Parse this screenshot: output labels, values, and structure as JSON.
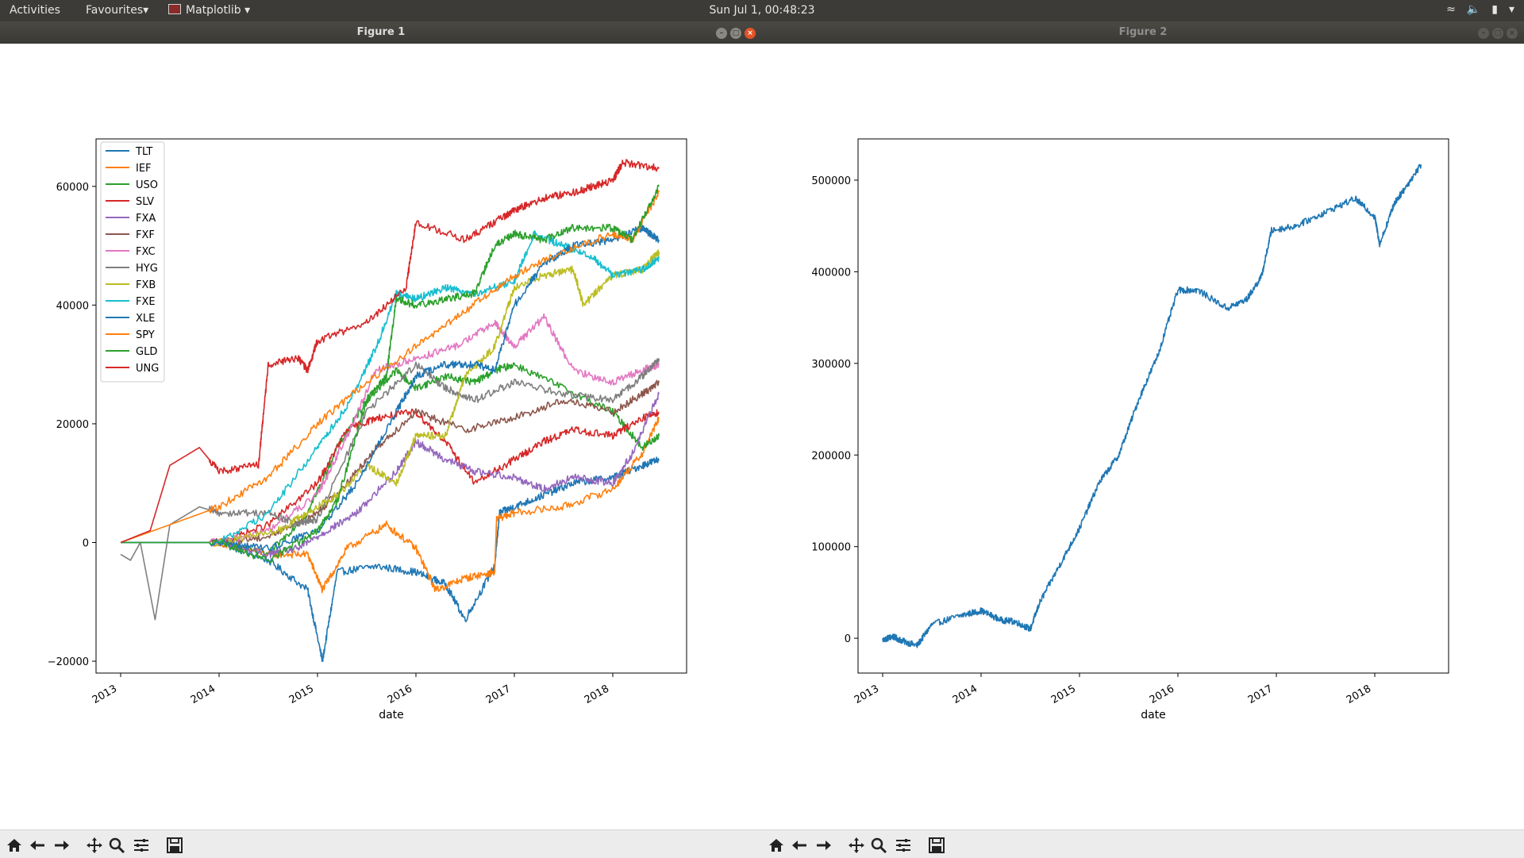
{
  "topbar": {
    "activities": "Activities",
    "favourites": "Favourites▾",
    "app": "Matplotlib",
    "app_arrow": "▾",
    "clock": "Sun Jul  1, 00:48:23",
    "icons": [
      "wifi-icon",
      "volume-muted-icon",
      "battery-icon",
      "system-menu-icon"
    ]
  },
  "windows": [
    {
      "title": "Figure 1",
      "buttons": [
        "minimize",
        "maximize",
        "close"
      ]
    },
    {
      "title": "Figure 2",
      "buttons": [
        "minimize",
        "maximize",
        "close"
      ]
    }
  ],
  "toolbar_icons": [
    "home-icon",
    "back-icon",
    "forward-icon",
    "pan-icon",
    "zoom-icon",
    "subplots-icon",
    "save-icon"
  ],
  "chart_data": [
    {
      "type": "line",
      "xlabel": "date",
      "ylabel": "",
      "xlim": [
        2012.75,
        2018.75
      ],
      "ylim": [
        -22000,
        68000
      ],
      "xticks": [
        2013,
        2014,
        2015,
        2016,
        2017,
        2018
      ],
      "yticks": [
        -20000,
        0,
        20000,
        40000,
        60000
      ],
      "ytick_labels": [
        "−20000",
        "0",
        "20000",
        "40000",
        "60000"
      ],
      "legend_position": "upper-left",
      "series": [
        {
          "name": "TLT",
          "color": "#1f77b4",
          "x": [
            2013.0,
            2014.0,
            2014.5,
            2014.9,
            2015.05,
            2015.2,
            2015.6,
            2016.0,
            2016.3,
            2016.5,
            2016.8,
            2016.85,
            2017.0,
            2017.3,
            2017.6,
            2018.0,
            2018.3,
            2018.47
          ],
          "y": [
            0,
            0,
            -3000,
            -8000,
            -20000,
            -5000,
            -4000,
            -5000,
            -7000,
            -13000,
            -4000,
            5000,
            6000,
            8000,
            10000,
            11000,
            13000,
            14000
          ]
        },
        {
          "name": "IEF",
          "color": "#ff7f0e",
          "x": [
            2013.0,
            2014.0,
            2014.5,
            2014.9,
            2015.05,
            2015.3,
            2015.7,
            2016.0,
            2016.2,
            2016.5,
            2016.8,
            2016.82,
            2017.0,
            2017.5,
            2018.0,
            2018.3,
            2018.47
          ],
          "y": [
            0,
            0,
            -2000,
            -2000,
            -8000,
            -1000,
            3000,
            -1000,
            -8000,
            -6000,
            -5000,
            4000,
            5000,
            6000,
            9000,
            15000,
            21000
          ]
        },
        {
          "name": "USO",
          "color": "#2ca02c",
          "x": [
            2013.0,
            2014.0,
            2014.5,
            2014.9,
            2015.2,
            2015.5,
            2015.8,
            2016.0,
            2016.3,
            2016.6,
            2016.8,
            2017.0,
            2017.5,
            2018.0,
            2018.3,
            2018.47
          ],
          "y": [
            0,
            0,
            -2000,
            5000,
            16000,
            24000,
            29000,
            26000,
            28000,
            27000,
            29000,
            30000,
            26000,
            22000,
            16000,
            18000
          ]
        },
        {
          "name": "SLV",
          "color": "#d62728",
          "x": [
            2013.0,
            2014.0,
            2014.5,
            2015.0,
            2015.3,
            2015.6,
            2016.0,
            2016.3,
            2016.6,
            2017.0,
            2017.3,
            2017.6,
            2018.0,
            2018.3,
            2018.47
          ],
          "y": [
            0,
            0,
            3000,
            10000,
            19000,
            21000,
            22000,
            17000,
            10000,
            14000,
            17000,
            19000,
            18000,
            21000,
            22000
          ]
        },
        {
          "name": "FXA",
          "color": "#9467bd",
          "x": [
            2013.0,
            2014.0,
            2014.5,
            2014.8,
            2015.1,
            2015.4,
            2015.8,
            2016.0,
            2016.3,
            2016.6,
            2017.0,
            2017.3,
            2017.6,
            2018.0,
            2018.2,
            2018.47
          ],
          "y": [
            0,
            0,
            -2000,
            -1000,
            2000,
            5000,
            12000,
            17000,
            14000,
            12000,
            11000,
            9000,
            11000,
            10000,
            15000,
            25000
          ]
        },
        {
          "name": "FXF",
          "color": "#8c564b",
          "x": [
            2013.0,
            2014.0,
            2014.5,
            2015.0,
            2015.3,
            2015.6,
            2016.0,
            2016.5,
            2017.0,
            2017.5,
            2018.0,
            2018.3,
            2018.47
          ],
          "y": [
            0,
            0,
            1000,
            5000,
            10000,
            16000,
            22000,
            19000,
            21000,
            24000,
            22000,
            25000,
            27000
          ]
        },
        {
          "name": "FXC",
          "color": "#e377c2",
          "x": [
            2013.0,
            2014.0,
            2014.5,
            2015.0,
            2015.3,
            2015.6,
            2016.0,
            2016.4,
            2016.8,
            2017.0,
            2017.3,
            2017.6,
            2018.0,
            2018.3,
            2018.47
          ],
          "y": [
            0,
            0,
            2000,
            8000,
            18000,
            29000,
            31000,
            33000,
            37000,
            33000,
            38000,
            29000,
            27000,
            29000,
            30000
          ]
        },
        {
          "name": "HYG",
          "color": "#7f7f7f",
          "x": [
            2013.0,
            2013.1,
            2013.2,
            2013.35,
            2013.5,
            2013.8,
            2014.0,
            2014.5,
            2014.8,
            2015.0,
            2015.5,
            2016.0,
            2016.3,
            2016.6,
            2017.0,
            2017.5,
            2018.0,
            2018.3,
            2018.47
          ],
          "y": [
            -2000,
            -3000,
            0,
            -13000,
            3000,
            6000,
            5000,
            5000,
            3000,
            4000,
            22000,
            30000,
            26000,
            24000,
            27000,
            25000,
            24000,
            28000,
            31000
          ]
        },
        {
          "name": "FXB",
          "color": "#bcbd22",
          "x": [
            2013.0,
            2014.0,
            2014.6,
            2014.9,
            2015.2,
            2015.5,
            2015.8,
            2016.0,
            2016.3,
            2016.5,
            2016.8,
            2017.0,
            2017.3,
            2017.6,
            2017.7,
            2018.0,
            2018.3,
            2018.47
          ],
          "y": [
            0,
            0,
            2000,
            5000,
            8000,
            13000,
            10000,
            18000,
            18000,
            28000,
            33000,
            43000,
            45000,
            46000,
            40000,
            45000,
            46000,
            49000
          ]
        },
        {
          "name": "FXE",
          "color": "#17becf",
          "x": [
            2013.0,
            2014.0,
            2014.5,
            2015.0,
            2015.3,
            2015.6,
            2015.8,
            2016.0,
            2016.3,
            2016.6,
            2017.0,
            2017.2,
            2017.5,
            2017.8,
            2018.0,
            2018.3,
            2018.47
          ],
          "y": [
            0,
            0,
            5000,
            16000,
            23000,
            33000,
            42000,
            41000,
            43000,
            42000,
            44000,
            52000,
            50000,
            48000,
            45000,
            46000,
            48000
          ]
        },
        {
          "name": "XLE",
          "color": "#1f77b4",
          "x": [
            2013.0,
            2014.0,
            2014.5,
            2015.0,
            2015.4,
            2015.8,
            2016.0,
            2016.3,
            2016.6,
            2016.8,
            2017.0,
            2017.3,
            2017.6,
            2018.0,
            2018.3,
            2018.47
          ],
          "y": [
            0,
            0,
            -1000,
            2000,
            10000,
            22000,
            28000,
            30000,
            30000,
            29000,
            40000,
            47000,
            50000,
            51000,
            53000,
            51000
          ]
        },
        {
          "name": "SPY",
          "color": "#ff7f0e",
          "x": [
            2013.0,
            2013.5,
            2014.0,
            2014.5,
            2015.0,
            2015.5,
            2016.0,
            2016.5,
            2017.0,
            2017.5,
            2018.0,
            2018.2,
            2018.47
          ],
          "y": [
            0,
            3000,
            6000,
            11000,
            20000,
            27000,
            33000,
            39000,
            45000,
            49000,
            52000,
            51000,
            59000
          ]
        },
        {
          "name": "GLD",
          "color": "#2ca02c",
          "x": [
            2013.0,
            2014.0,
            2014.5,
            2015.0,
            2015.2,
            2015.5,
            2015.7,
            2015.8,
            2016.0,
            2016.3,
            2016.6,
            2016.8,
            2017.0,
            2017.3,
            2017.6,
            2018.0,
            2018.2,
            2018.47
          ],
          "y": [
            0,
            0,
            -3000,
            2000,
            7000,
            24000,
            28000,
            41000,
            40000,
            41000,
            42000,
            50000,
            52000,
            51000,
            53000,
            53000,
            51000,
            60000
          ]
        },
        {
          "name": "UNG",
          "color": "#d62728",
          "x": [
            2013.0,
            2013.3,
            2013.5,
            2013.8,
            2014.0,
            2014.4,
            2014.5,
            2014.8,
            2014.9,
            2015.0,
            2015.5,
            2015.9,
            2016.0,
            2016.5,
            2016.9,
            2017.0,
            2017.3,
            2017.6,
            2017.8,
            2018.0,
            2018.1,
            2018.47
          ],
          "y": [
            0,
            2000,
            13000,
            16000,
            12000,
            13000,
            30000,
            31000,
            29000,
            34000,
            37000,
            43000,
            54000,
            51000,
            55000,
            56000,
            58000,
            59000,
            60000,
            61000,
            64000,
            63000
          ]
        }
      ]
    },
    {
      "type": "line",
      "xlabel": "date",
      "ylabel": "",
      "xlim": [
        2012.75,
        2018.75
      ],
      "ylim": [
        -38000,
        545000
      ],
      "xticks": [
        2013,
        2014,
        2015,
        2016,
        2017,
        2018
      ],
      "yticks": [
        0,
        100000,
        200000,
        300000,
        400000,
        500000
      ],
      "series": [
        {
          "color": "#1f77b4",
          "x": [
            2013.0,
            2013.1,
            2013.2,
            2013.35,
            2013.5,
            2013.8,
            2014.0,
            2014.2,
            2014.35,
            2014.5,
            2014.6,
            2014.8,
            2015.0,
            2015.2,
            2015.4,
            2015.6,
            2015.8,
            2016.0,
            2016.2,
            2016.5,
            2016.7,
            2016.85,
            2016.95,
            2017.2,
            2017.5,
            2017.8,
            2018.0,
            2018.05,
            2018.2,
            2018.3,
            2018.47
          ],
          "y": [
            -2000,
            2000,
            -3000,
            -8000,
            15000,
            25000,
            30000,
            20000,
            18000,
            10000,
            40000,
            80000,
            120000,
            170000,
            200000,
            260000,
            310000,
            380000,
            380000,
            360000,
            370000,
            395000,
            445000,
            450000,
            465000,
            480000,
            460000,
            430000,
            475000,
            490000,
            517000
          ]
        }
      ]
    }
  ]
}
